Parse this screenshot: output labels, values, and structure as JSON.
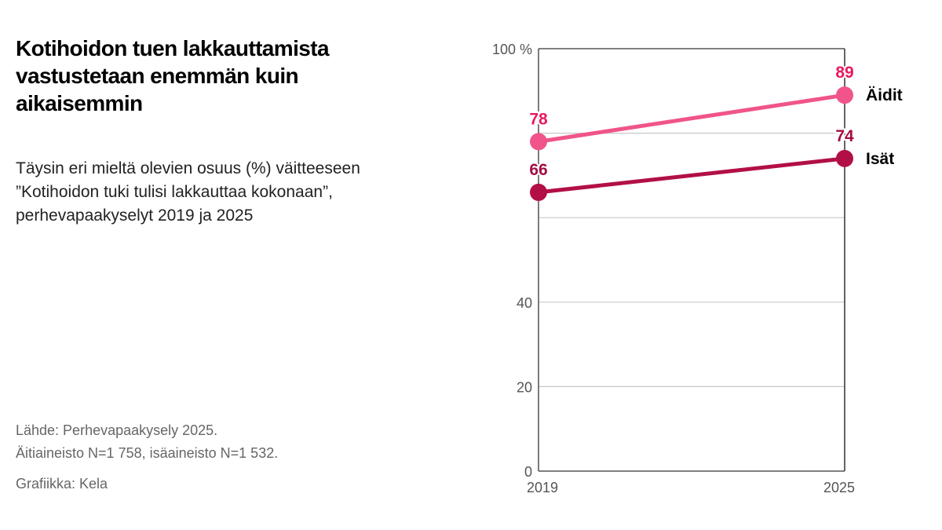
{
  "title": "Kotihoidon tuen lakkauttamista vastustetaan enemmän kuin aikaisemmin",
  "subtitle": "Täysin eri mieltä olevien osuus (%) väitteeseen ”Kotihoidon tuki tulisi lakkauttaa kokonaan”, perhevapaakyselyt 2019 ja 2025",
  "source_line1": "Lähde: Perhevapaakysely 2025.",
  "source_line2": "Äitiaineisto N=1 758,  isäaineisto N=1 532.",
  "credit": "Grafiikka: Kela",
  "chart_data": {
    "type": "line",
    "x": [
      "2019",
      "2025"
    ],
    "ylim": [
      0,
      100
    ],
    "yticks": [
      0,
      20,
      40,
      60,
      80,
      100
    ],
    "ytick_labels": [
      "0",
      "20",
      "40",
      "",
      "",
      "100 %"
    ],
    "grid": true,
    "series": [
      {
        "name": "Äidit",
        "values": [
          78,
          89
        ],
        "color": "#f0548a",
        "label_color": "#e8195e"
      },
      {
        "name": "Isät",
        "values": [
          66,
          74
        ],
        "color": "#b20f47",
        "label_color": "#a30d42"
      }
    ]
  }
}
